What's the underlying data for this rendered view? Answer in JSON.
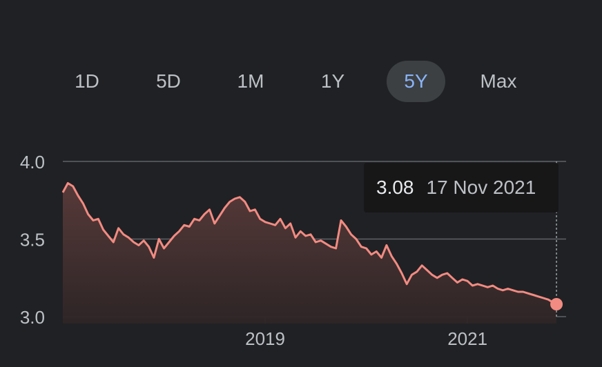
{
  "range_tabs": [
    {
      "label": "1D",
      "active": false
    },
    {
      "label": "5D",
      "active": false
    },
    {
      "label": "1M",
      "active": false
    },
    {
      "label": "1Y",
      "active": false
    },
    {
      "label": "5Y",
      "active": true
    },
    {
      "label": "Max",
      "active": false
    }
  ],
  "tooltip": {
    "value": "3.08",
    "date": "17 Nov 2021"
  },
  "colors": {
    "background": "#202124",
    "line": "#f28b82",
    "fill_top": "#5a3b3a",
    "grid": "#5f6368",
    "tab_active_bg": "#3c4043",
    "tab_active_text": "#8ab4f8",
    "tab_text": "#bdc1c6"
  },
  "chart_data": {
    "type": "area",
    "y_ticks": [
      "4.0",
      "3.5",
      "3.0"
    ],
    "y_tick_values": [
      4.0,
      3.5,
      3.0
    ],
    "x_ticks": [
      "2019",
      "2021"
    ],
    "x_tick_values": [
      2019.0,
      2021.0
    ],
    "ylim": [
      2.95,
      4.0
    ],
    "xlim": [
      2017.0,
      2021.9
    ],
    "x": [
      2017.0,
      2017.05,
      2017.1,
      2017.15,
      2017.2,
      2017.25,
      2017.3,
      2017.35,
      2017.4,
      2017.45,
      2017.5,
      2017.55,
      2017.6,
      2017.65,
      2017.7,
      2017.75,
      2017.8,
      2017.85,
      2017.9,
      2017.95,
      2018.0,
      2018.05,
      2018.1,
      2018.15,
      2018.2,
      2018.25,
      2018.3,
      2018.35,
      2018.4,
      2018.45,
      2018.5,
      2018.55,
      2018.6,
      2018.65,
      2018.7,
      2018.75,
      2018.8,
      2018.85,
      2018.9,
      2018.95,
      2019.0,
      2019.05,
      2019.1,
      2019.15,
      2019.2,
      2019.25,
      2019.3,
      2019.35,
      2019.4,
      2019.45,
      2019.5,
      2019.55,
      2019.6,
      2019.65,
      2019.7,
      2019.75,
      2019.8,
      2019.85,
      2019.9,
      2019.95,
      2020.0,
      2020.05,
      2020.1,
      2020.15,
      2020.2,
      2020.25,
      2020.3,
      2020.35,
      2020.4,
      2020.45,
      2020.5,
      2020.55,
      2020.6,
      2020.65,
      2020.7,
      2020.75,
      2020.8,
      2020.85,
      2020.9,
      2020.95,
      2021.0,
      2021.05,
      2021.1,
      2021.15,
      2021.2,
      2021.25,
      2021.3,
      2021.35,
      2021.4,
      2021.45,
      2021.5,
      2021.55,
      2021.6,
      2021.65,
      2021.7,
      2021.75,
      2021.8,
      2021.85,
      2021.88
    ],
    "series": [
      {
        "values": [
          3.8,
          3.86,
          3.84,
          3.78,
          3.73,
          3.66,
          3.62,
          3.63,
          3.56,
          3.52,
          3.48,
          3.57,
          3.53,
          3.51,
          3.48,
          3.46,
          3.49,
          3.45,
          3.38,
          3.5,
          3.44,
          3.48,
          3.52,
          3.55,
          3.59,
          3.58,
          3.63,
          3.62,
          3.66,
          3.69,
          3.6,
          3.65,
          3.7,
          3.74,
          3.76,
          3.77,
          3.74,
          3.68,
          3.69,
          3.63,
          3.61,
          3.6,
          3.59,
          3.63,
          3.57,
          3.6,
          3.51,
          3.55,
          3.52,
          3.53,
          3.48,
          3.49,
          3.47,
          3.45,
          3.44,
          3.62,
          3.58,
          3.53,
          3.5,
          3.45,
          3.44,
          3.4,
          3.42,
          3.38,
          3.46,
          3.39,
          3.34,
          3.28,
          3.21,
          3.27,
          3.29,
          3.33,
          3.3,
          3.27,
          3.25,
          3.27,
          3.28,
          3.25,
          3.22,
          3.24,
          3.23,
          3.2,
          3.21,
          3.2,
          3.19,
          3.2,
          3.18,
          3.17,
          3.18,
          3.17,
          3.16,
          3.16,
          3.15,
          3.14,
          3.13,
          3.12,
          3.11,
          3.09,
          3.08
        ]
      }
    ],
    "grid": true,
    "highlight": {
      "x": 2021.88,
      "y": 3.08
    }
  }
}
